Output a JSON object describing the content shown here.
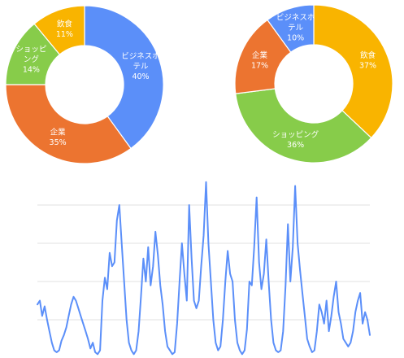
{
  "chart_data": [
    {
      "type": "pie",
      "donut": true,
      "title": "",
      "slices": [
        {
          "label": [
            "ビジネスホ",
            "テル"
          ],
          "value": 40,
          "value_label": "40%",
          "color": "#5b8ff9"
        },
        {
          "label": [
            "企業"
          ],
          "value": 35,
          "value_label": "35%",
          "color": "#ec7430"
        },
        {
          "label": [
            "ショッピ",
            "ング"
          ],
          "value": 14,
          "value_label": "14%",
          "color": "#87cc4a"
        },
        {
          "label": [
            "飲食"
          ],
          "value": 11,
          "value_label": "11%",
          "color": "#f9b400"
        }
      ]
    },
    {
      "type": "pie",
      "donut": true,
      "title": "",
      "slices": [
        {
          "label": [
            "飲食"
          ],
          "value": 37,
          "value_label": "37%",
          "color": "#f9b400"
        },
        {
          "label": [
            "ショッピング"
          ],
          "value": 36,
          "value_label": "36%",
          "color": "#87cc4a"
        },
        {
          "label": [
            "企業"
          ],
          "value": 17,
          "value_label": "17%",
          "color": "#ec7430"
        },
        {
          "label": [
            "ビジネスホ",
            "テル"
          ],
          "value": 10,
          "value_label": "10%",
          "color": "#5b8ff9"
        }
      ]
    },
    {
      "type": "line",
      "title": "",
      "xlabel": "",
      "ylabel": "",
      "ylim": [
        0,
        100
      ],
      "grid": true,
      "gridlines": [
        20,
        40,
        60,
        80
      ],
      "series": [
        {
          "color": "#5b8ff9",
          "values": [
            28,
            30,
            22,
            27,
            20,
            14,
            8,
            4,
            3,
            4,
            9,
            12,
            16,
            22,
            28,
            32,
            30,
            26,
            22,
            18,
            14,
            10,
            5,
            8,
            3,
            2,
            4,
            30,
            42,
            36,
            55,
            48,
            50,
            72,
            80,
            60,
            40,
            20,
            8,
            4,
            2,
            4,
            14,
            32,
            52,
            40,
            58,
            38,
            48,
            66,
            54,
            38,
            28,
            14,
            6,
            4,
            2,
            3,
            18,
            40,
            60,
            44,
            30,
            80,
            52,
            30,
            26,
            30,
            48,
            64,
            92,
            60,
            40,
            20,
            8,
            4,
            6,
            20,
            40,
            56,
            44,
            40,
            20,
            8,
            4,
            2,
            4,
            15,
            40,
            38,
            58,
            84,
            50,
            36,
            44,
            62,
            40,
            20,
            8,
            4,
            3,
            4,
            14,
            38,
            70,
            40,
            58,
            90,
            60,
            46,
            34,
            22,
            10,
            6,
            3,
            4,
            14,
            28,
            24,
            18,
            30,
            14,
            22,
            32,
            40,
            24,
            18,
            10,
            8,
            6,
            8,
            14,
            24,
            30,
            34,
            18,
            24,
            20,
            12
          ]
        }
      ]
    }
  ]
}
